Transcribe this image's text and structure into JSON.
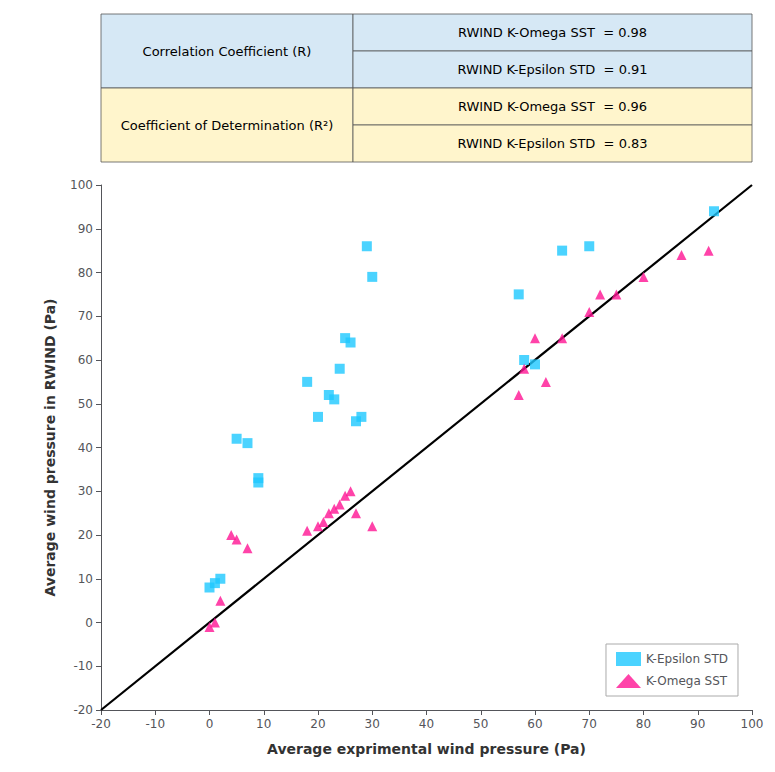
{
  "chart_data": {
    "type": "scatter",
    "xlabel": "Average exprimental wind pressure (Pa)",
    "ylabel": "Average wind pressure in RWIND (Pa)",
    "xlim": [
      -20,
      100
    ],
    "ylim": [
      -20,
      100
    ],
    "xticks": [
      -20,
      -10,
      0,
      10,
      20,
      30,
      40,
      50,
      60,
      70,
      80,
      90,
      100
    ],
    "yticks": [
      -20,
      -10,
      0,
      10,
      20,
      30,
      40,
      50,
      60,
      70,
      80,
      90,
      100
    ],
    "grid": false,
    "legend": "lower right",
    "series": [
      {
        "name": "K-Epsilon STD",
        "type": "scatter",
        "marker": "square",
        "color": "#1EC8FF",
        "x": [
          0,
          1,
          2,
          5,
          7,
          9,
          9,
          18,
          20,
          22,
          23,
          24,
          25,
          26,
          27,
          28,
          29,
          30,
          57,
          58,
          60,
          65,
          70,
          93
        ],
        "values": [
          8,
          9,
          10,
          42,
          41,
          32,
          33,
          55,
          47,
          52,
          51,
          58,
          65,
          64,
          46,
          47,
          86,
          79,
          75,
          60,
          59,
          85,
          86,
          94
        ]
      },
      {
        "name": "K-Omega SST",
        "type": "scatter",
        "marker": "triangle",
        "color": "#FF1493",
        "x": [
          0,
          1,
          2,
          4,
          5,
          7,
          18,
          20,
          21,
          22,
          23,
          24,
          25,
          26,
          27,
          30,
          57,
          58,
          60,
          62,
          65,
          70,
          72,
          75,
          80,
          87,
          92
        ],
        "values": [
          -1,
          0,
          5,
          20,
          19,
          17,
          21,
          22,
          23,
          25,
          26,
          27,
          29,
          30,
          25,
          22,
          52,
          58,
          65,
          55,
          65,
          71,
          75,
          75,
          79,
          84,
          85
        ]
      },
      {
        "type": "line",
        "line_style": "solid",
        "color": "#000000",
        "x": [
          -20,
          100
        ],
        "values": [
          -20,
          100
        ]
      }
    ],
    "annotations": [
      {
        "text": "Correlation Coefficient (R)",
        "color": "#D6E8F5",
        "values": [
          "RWIND K-Omega SST  = 0.98",
          "RWIND K-Epsilon STD  = 0.91"
        ]
      },
      {
        "text": "Coefficient of Determination (R²)",
        "color": "#FFF5CC",
        "values": [
          "RWIND K-Omega SST  = 0.96",
          "RWIND K-Epsilon STD  = 0.83"
        ]
      }
    ]
  }
}
